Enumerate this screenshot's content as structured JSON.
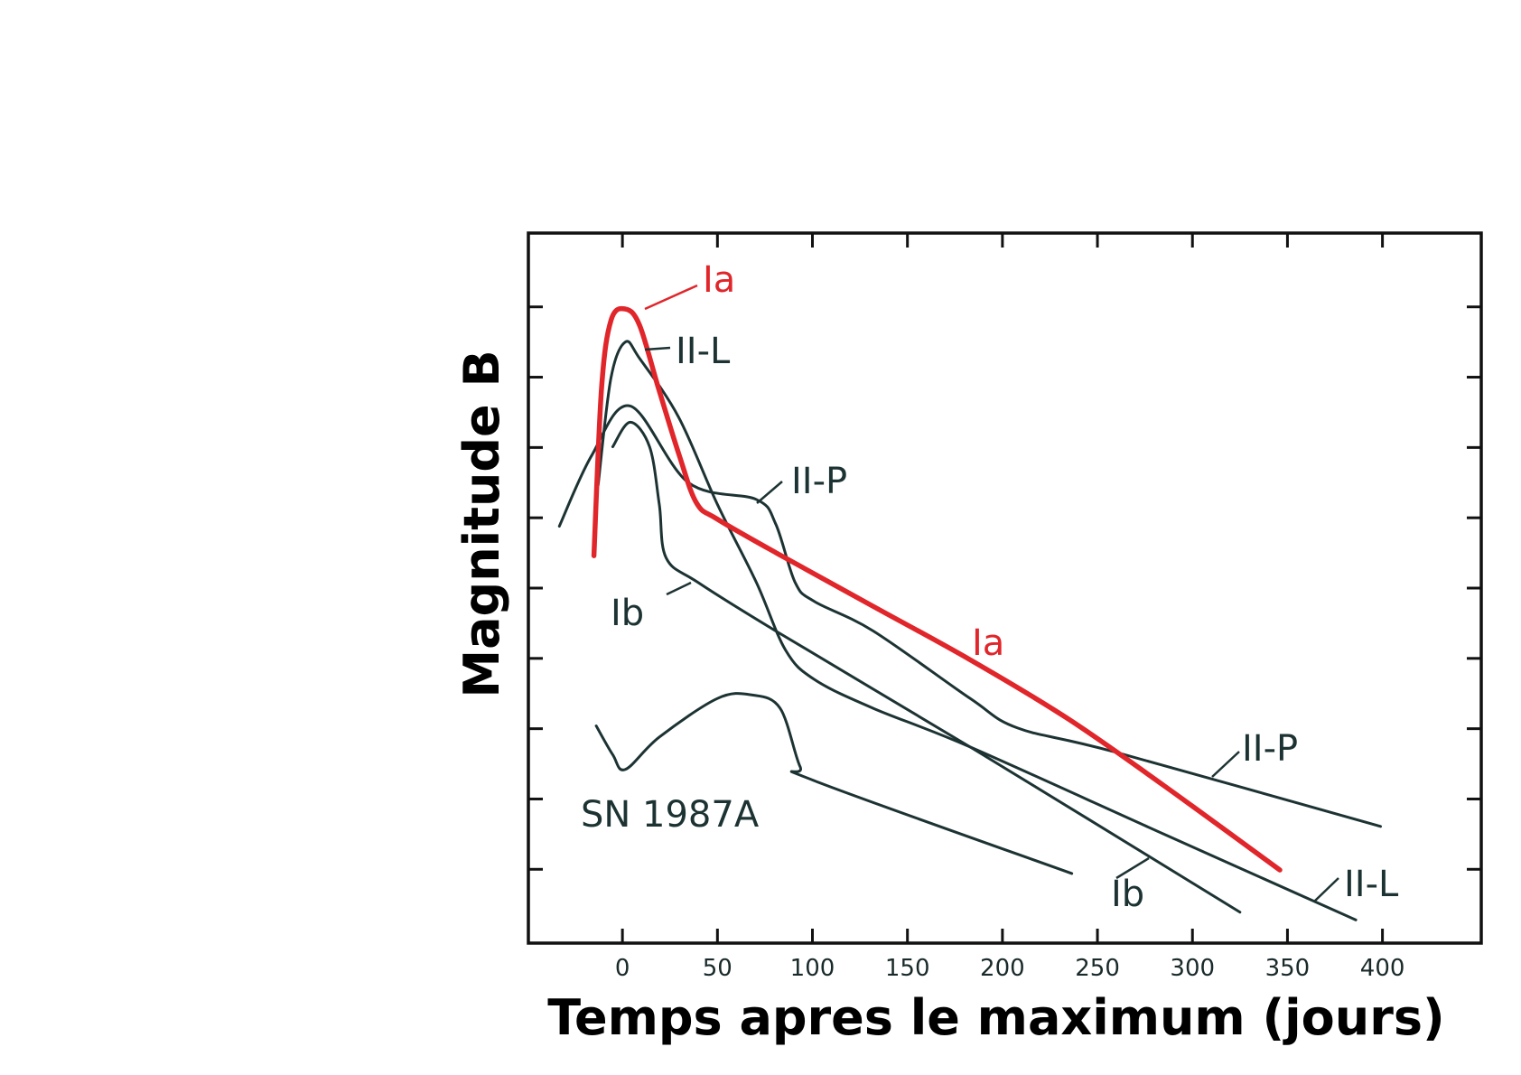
{
  "chart_data": {
    "type": "line",
    "title": "",
    "xlabel": "Temps apres le maximum (jours)",
    "ylabel": "Magnitude B",
    "xlim": [
      -49.5,
      452
    ],
    "ylim": [
      -1.05,
      9.05
    ],
    "y_inverted": true,
    "xticks": [
      0,
      50,
      100,
      150,
      200,
      250,
      300,
      350,
      400
    ],
    "xtick_labels": [
      "0",
      "50",
      "100",
      "150",
      "200",
      "250",
      "300",
      "350",
      "400"
    ],
    "yticks": [
      0,
      1,
      2,
      3,
      4,
      5,
      6,
      7,
      8
    ],
    "grid": false,
    "colors": {
      "Ia": "#e0262b",
      "other": "#1d3333"
    },
    "series": [
      {
        "name": "Ia",
        "x": [
          -15,
          -11,
          -6,
          1.5,
          9,
          19,
          30,
          39,
          50,
          81,
          132,
          183,
          234,
          285,
          346
        ],
        "y": [
          3.54,
          1.16,
          0.19,
          0.03,
          0.26,
          1.16,
          2.12,
          2.79,
          3.02,
          3.5,
          4.26,
          5.02,
          5.85,
          6.81,
          8.01
        ]
      },
      {
        "name": "II-L",
        "x": [
          -12.8,
          -6.1,
          1.5,
          9.2,
          29.6,
          50,
          70.5,
          85.8,
          101,
          132,
          183,
          285,
          386
        ],
        "y": [
          2.54,
          1.02,
          0.5,
          0.74,
          1.57,
          2.81,
          3.92,
          4.88,
          5.3,
          5.71,
          6.26,
          7.5,
          8.72
        ]
      },
      {
        "name": "II-P",
        "x": [
          -33.2,
          -16.3,
          4.1,
          34.7,
          70.5,
          80.7,
          90.9,
          101,
          132,
          183,
          208,
          259,
          399
        ],
        "y": [
          3.12,
          2.12,
          1.41,
          2.5,
          2.74,
          3.09,
          3.92,
          4.19,
          4.61,
          5.57,
          5.99,
          6.33,
          7.39
        ]
      },
      {
        "name": "Ib",
        "x": [
          -5.1,
          4.1,
          14.3,
          19.4,
          23,
          39.8,
          80.7,
          183,
          325
        ],
        "y": [
          1.99,
          1.64,
          1.99,
          2.81,
          3.57,
          3.92,
          4.61,
          6.26,
          8.61
        ]
      },
      {
        "name": "SN 1987A",
        "x": [
          -13.8,
          -5.1,
          1.5,
          19.4,
          50,
          68,
          83,
          93.5,
          101,
          236.5
        ],
        "y": [
          5.96,
          6.37,
          6.58,
          6.12,
          5.57,
          5.52,
          5.71,
          6.54,
          6.74,
          8.06
        ]
      }
    ],
    "annotations": [
      {
        "key": "ia_top",
        "text": "Ia",
        "series": "Ia"
      },
      {
        "key": "iil_top",
        "text": "II-L",
        "series": "II-L"
      },
      {
        "key": "iip_top",
        "text": "II-P",
        "series": "II-P"
      },
      {
        "key": "ib_top",
        "text": "Ib",
        "series": "Ib"
      },
      {
        "key": "ia_mid",
        "text": "Ia",
        "series": "Ia"
      },
      {
        "key": "iip_end",
        "text": "II-P",
        "series": "II-P"
      },
      {
        "key": "ib_end",
        "text": "Ib",
        "series": "Ib"
      },
      {
        "key": "iil_end",
        "text": "II-L",
        "series": "II-L"
      },
      {
        "key": "sn_label",
        "text": "SN 1987A",
        "series": "SN 1987A"
      }
    ]
  }
}
